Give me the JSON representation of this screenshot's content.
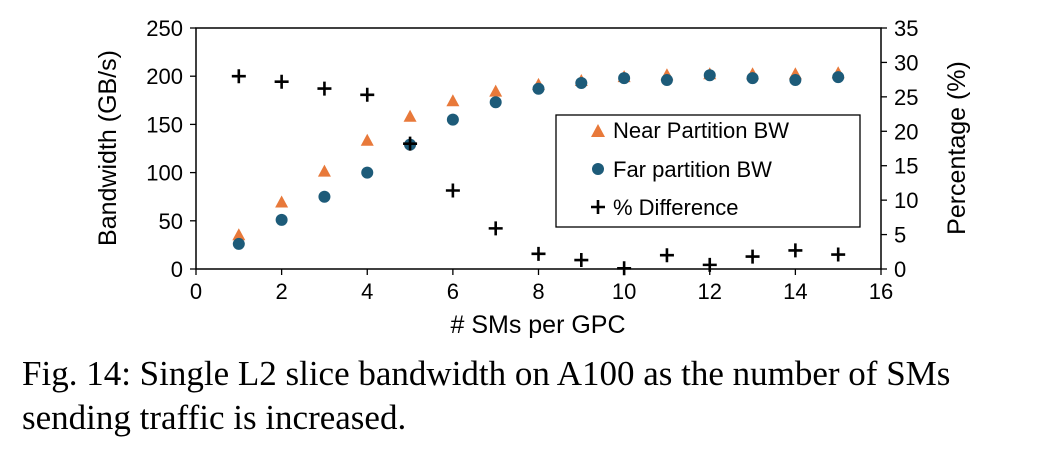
{
  "chart_data": {
    "type": "scatter",
    "x": [
      1,
      2,
      3,
      4,
      5,
      6,
      7,
      8,
      9,
      10,
      11,
      12,
      13,
      14,
      15
    ],
    "series": [
      {
        "name": "Near Partition BW",
        "axis": "left",
        "marker": "triangle",
        "color": "#e8793a",
        "values": [
          35,
          69,
          101,
          133,
          158,
          174,
          184,
          191,
          195,
          199,
          201,
          202,
          202,
          202,
          203
        ]
      },
      {
        "name": "Far partition BW",
        "axis": "left",
        "marker": "circle",
        "color": "#1d5b79",
        "values": [
          26,
          51,
          75,
          100,
          129,
          155,
          173,
          187,
          193,
          198,
          196,
          201,
          198,
          196,
          199
        ]
      },
      {
        "name": "% Difference",
        "axis": "right",
        "marker": "plus",
        "color": "#000000",
        "values": [
          28,
          27.2,
          26.2,
          25.3,
          18.2,
          11.4,
          5.9,
          2.2,
          1.3,
          0.1,
          2.0,
          0.6,
          1.8,
          2.7,
          2.1
        ]
      }
    ],
    "xlabel": "# SMs per GPC",
    "ylabel": "Bandwidth (GB/s)",
    "y2label": "Percentage (%)",
    "xlim": [
      0,
      16
    ],
    "ylim": [
      0,
      250
    ],
    "y2lim": [
      0,
      35
    ],
    "xticks": [
      "0",
      "2",
      "4",
      "6",
      "8",
      "10",
      "12",
      "14",
      "16"
    ],
    "yticks": [
      "0",
      "50",
      "100",
      "150",
      "200",
      "250"
    ],
    "y2ticks": [
      "0",
      "5",
      "10",
      "15",
      "20",
      "25",
      "30",
      "35"
    ],
    "grid": false,
    "legend_position": "center-right"
  },
  "caption": "Fig. 14: Single L2 slice bandwidth on A100 as the number of SMs sending traffic is increased."
}
